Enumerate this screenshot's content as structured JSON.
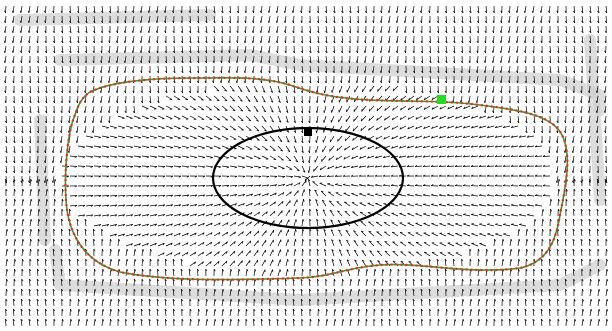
{
  "figure": {
    "description_labels": [],
    "colors": {
      "background": "#ffffff",
      "vector_field": "#000000",
      "shadow_band": "#cfcfcf",
      "outer_contour_dots": "#ff2020",
      "outer_contour_line": "#2e9e2e",
      "initial_contour": "#000000",
      "initial_marker": "#000000",
      "final_marker": "#22dd22"
    },
    "elements": {
      "vector_field": "gradient-vector-flow-field",
      "outer_contour": "converged-snake-contour",
      "inner_contour": "initial-ellipse-contour",
      "start_marker": "square-marker",
      "end_marker": "square-marker"
    }
  }
}
